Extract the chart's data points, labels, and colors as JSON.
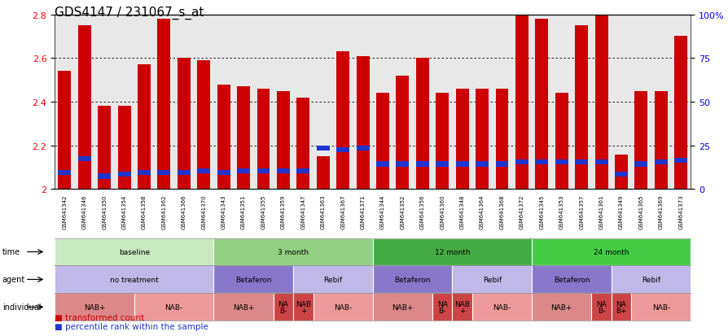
{
  "title": "GDS4147 / 231067_s_at",
  "samples": [
    "GSM641342",
    "GSM641346",
    "GSM641350",
    "GSM641354",
    "GSM641358",
    "GSM641362",
    "GSM641366",
    "GSM641370",
    "GSM641343",
    "GSM641351",
    "GSM641355",
    "GSM641359",
    "GSM641347",
    "GSM641363",
    "GSM641367",
    "GSM641371",
    "GSM641344",
    "GSM641352",
    "GSM641356",
    "GSM641360",
    "GSM641348",
    "GSM641364",
    "GSM641368",
    "GSM641372",
    "GSM641345",
    "GSM641353",
    "GSM641357",
    "GSM641361",
    "GSM641349",
    "GSM641365",
    "GSM641369",
    "GSM641373"
  ],
  "transformed_count": [
    2.54,
    2.75,
    2.38,
    2.38,
    2.57,
    2.78,
    2.6,
    2.59,
    2.48,
    2.47,
    2.46,
    2.45,
    2.42,
    2.15,
    2.63,
    2.61,
    2.44,
    2.52,
    2.6,
    2.44,
    2.46,
    2.46,
    2.46,
    2.8,
    2.78,
    2.44,
    2.75,
    2.82,
    2.16,
    2.45,
    2.45,
    2.7
  ],
  "percentile_rank": [
    8,
    16,
    6,
    7,
    8,
    8,
    8,
    9,
    8,
    9,
    9,
    9,
    9,
    22,
    21,
    22,
    13,
    13,
    13,
    13,
    13,
    13,
    13,
    14,
    14,
    14,
    14,
    14,
    7,
    13,
    14,
    15
  ],
  "ymin": 2.0,
  "ymax": 2.8,
  "bar_color": "#cc0000",
  "blue_color": "#2233cc",
  "bg_color": "#ffffff",
  "plot_bg": "#e8e8e8",
  "title_fontsize": 11,
  "time_groups": [
    {
      "label": "baseline",
      "start": 0,
      "end": 7,
      "color": "#c8e8c0"
    },
    {
      "label": "3 month",
      "start": 8,
      "end": 15,
      "color": "#90d080"
    },
    {
      "label": "12 month",
      "start": 16,
      "end": 23,
      "color": "#44aa44"
    },
    {
      "label": "24 month",
      "start": 24,
      "end": 31,
      "color": "#44cc44"
    }
  ],
  "agent_groups": [
    {
      "label": "no treatment",
      "start": 0,
      "end": 7,
      "color": "#c0b8e8"
    },
    {
      "label": "Betaferon",
      "start": 8,
      "end": 11,
      "color": "#8878cc"
    },
    {
      "label": "Rebif",
      "start": 12,
      "end": 15,
      "color": "#c0b8e8"
    },
    {
      "label": "Betaferon",
      "start": 16,
      "end": 19,
      "color": "#8878cc"
    },
    {
      "label": "Rebif",
      "start": 20,
      "end": 23,
      "color": "#c0b8e8"
    },
    {
      "label": "Betaferon",
      "start": 24,
      "end": 27,
      "color": "#8878cc"
    },
    {
      "label": "Rebif",
      "start": 28,
      "end": 31,
      "color": "#c0b8e8"
    }
  ],
  "individual_groups": [
    {
      "label": "NAB+",
      "start": 0,
      "end": 3,
      "color": "#dd8888"
    },
    {
      "label": "NAB-",
      "start": 4,
      "end": 7,
      "color": "#ee9999"
    },
    {
      "label": "NAB+",
      "start": 8,
      "end": 10,
      "color": "#dd8888"
    },
    {
      "label": "NA\nB-",
      "start": 11,
      "end": 11,
      "color": "#cc4444"
    },
    {
      "label": "NAB\n+",
      "start": 12,
      "end": 12,
      "color": "#cc4444"
    },
    {
      "label": "NAB-",
      "start": 13,
      "end": 15,
      "color": "#ee9999"
    },
    {
      "label": "NAB+",
      "start": 16,
      "end": 18,
      "color": "#dd8888"
    },
    {
      "label": "NA\nB-",
      "start": 19,
      "end": 19,
      "color": "#cc4444"
    },
    {
      "label": "NAB\n+",
      "start": 20,
      "end": 20,
      "color": "#cc4444"
    },
    {
      "label": "NAB-",
      "start": 21,
      "end": 23,
      "color": "#ee9999"
    },
    {
      "label": "NAB+",
      "start": 24,
      "end": 26,
      "color": "#dd8888"
    },
    {
      "label": "NA\nB-",
      "start": 27,
      "end": 27,
      "color": "#cc4444"
    },
    {
      "label": "NA\nB+",
      "start": 28,
      "end": 28,
      "color": "#cc4444"
    },
    {
      "label": "NAB-",
      "start": 29,
      "end": 31,
      "color": "#ee9999"
    }
  ]
}
